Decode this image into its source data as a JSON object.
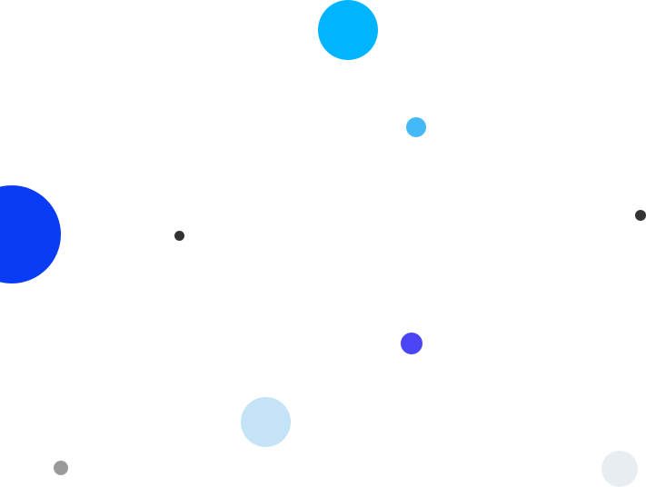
{
  "background": {
    "color": "#ffffff",
    "circles": [
      {
        "color": "#00b4ff"
      },
      {
        "color": "#45b8f8"
      },
      {
        "color": "#0a3cf5"
      },
      {
        "color": "#333333"
      },
      {
        "color": "#333333"
      },
      {
        "color": "#4b45f5"
      },
      {
        "color": "#c5e3f6"
      },
      {
        "color": "#9a9a9a"
      },
      {
        "color": "#e8edf1"
      }
    ]
  }
}
